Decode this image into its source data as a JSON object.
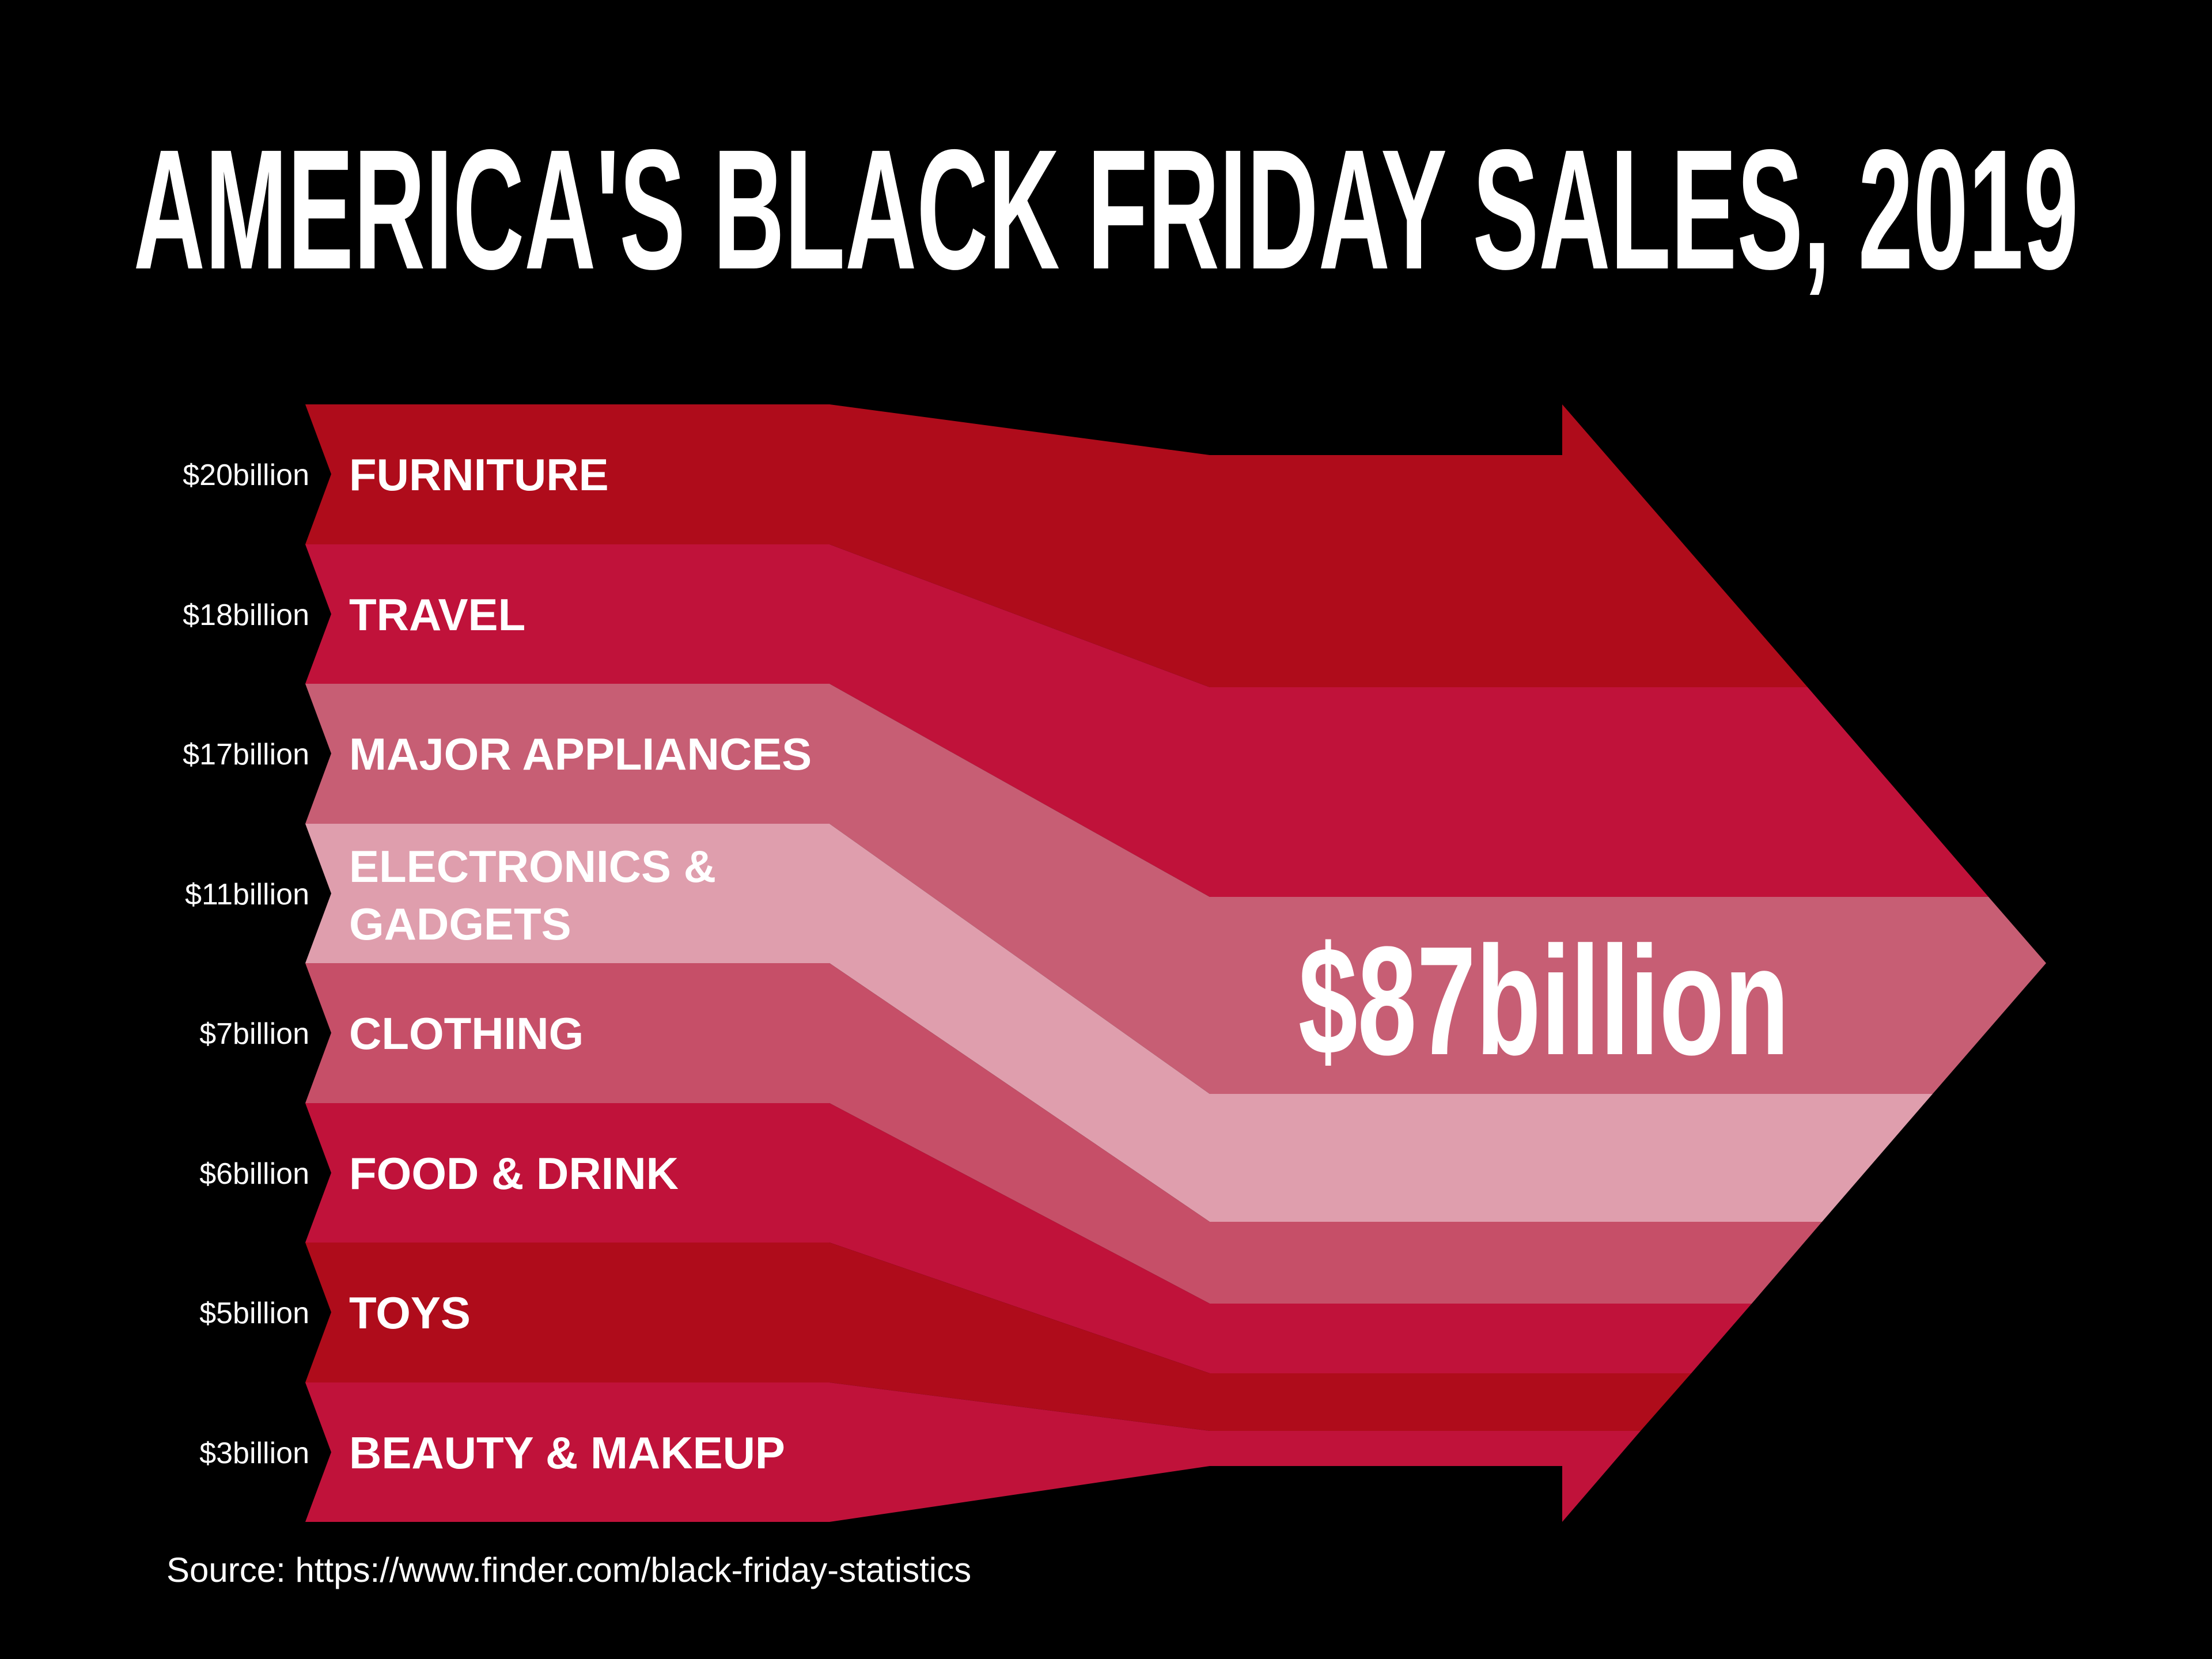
{
  "title": "AMERICA'S BLACK FRIDAY SALES, 2019",
  "total_label": "$87billion",
  "source": "Source: https://www.finder.com/black-friday-statistics",
  "colors": {
    "background": "#000000",
    "text": "#FFFFFF"
  },
  "chart_data": {
    "type": "bar",
    "subtype": "converging-ribbon-arrow-flow",
    "title": "AMERICA'S BLACK FRIDAY SALES, 2019",
    "categories": [
      "FURNITURE",
      "TRAVEL",
      "MAJOR APPLIANCES",
      "ELECTRONICS & GADGETS",
      "CLOTHING",
      "FOOD & DRINK",
      "TOYS",
      "BEAUTY & MAKEUP"
    ],
    "category_lines": [
      [
        "FURNITURE"
      ],
      [
        "TRAVEL"
      ],
      [
        "MAJOR APPLIANCES"
      ],
      [
        "ELECTRONICS &",
        "GADGETS"
      ],
      [
        "CLOTHING"
      ],
      [
        "FOOD & DRINK"
      ],
      [
        "TOYS"
      ],
      [
        "BEAUTY & MAKEUP"
      ]
    ],
    "values": [
      20,
      18,
      17,
      11,
      7,
      6,
      5,
      3
    ],
    "value_labels": [
      "$20billion",
      "$18billion",
      "$17billion",
      "$11billion",
      "$7billion",
      "$6billion",
      "$5billion",
      "$3billion"
    ],
    "total": 87,
    "total_label": "$87billion",
    "unit": "billion USD",
    "colors": [
      "#AF0C1B",
      "#C0123A",
      "#C75E74",
      "#DF9EAD",
      "#C64F68",
      "#C0123A",
      "#AF0C1B",
      "#C0123A"
    ],
    "legend": "none",
    "axes": "none",
    "background": "#000000"
  }
}
